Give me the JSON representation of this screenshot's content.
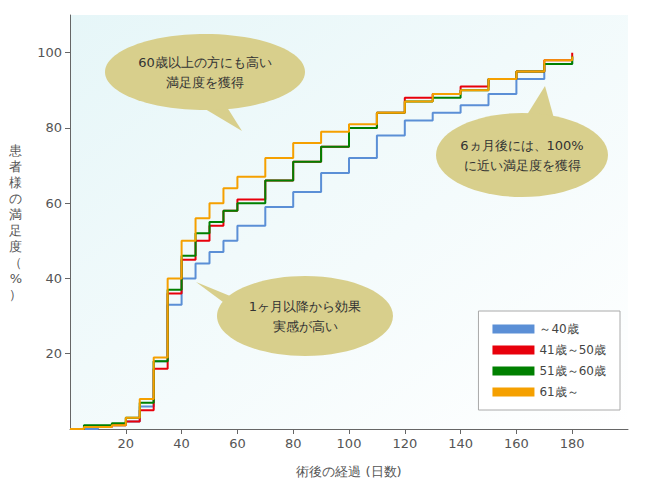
{
  "chart_data": {
    "type": "line",
    "x_label": "術後の経過 (日数)",
    "y_label": "患者様の満足度（%）",
    "x": [
      0,
      5,
      10,
      15,
      20,
      25,
      30,
      35,
      40,
      45,
      50,
      55,
      60,
      70,
      80,
      90,
      100,
      110,
      120,
      130,
      140,
      150,
      160,
      170,
      180
    ],
    "series": [
      {
        "name": "～40歳",
        "color": "#5b8fd6",
        "values": [
          0,
          0,
          0.5,
          1,
          2,
          6,
          18,
          33,
          40,
          44,
          47,
          50,
          54,
          59,
          63,
          68,
          72,
          78,
          82,
          84,
          86,
          89,
          93,
          97,
          99
        ]
      },
      {
        "name": "41歳～50歳",
        "color": "#e8000b",
        "values": [
          0,
          0.5,
          0.5,
          1,
          2,
          5,
          16,
          36,
          45,
          50,
          54,
          58,
          61,
          66,
          71,
          75,
          80,
          84,
          88,
          89,
          91,
          93,
          95,
          98,
          100
        ]
      },
      {
        "name": "51歳～60歳",
        "color": "#008000",
        "values": [
          0,
          1,
          1,
          1.5,
          3,
          7,
          18,
          37,
          46,
          52,
          55,
          58,
          60,
          66,
          71,
          75,
          80,
          84,
          87,
          88,
          90,
          93,
          95,
          97,
          99
        ]
      },
      {
        "name": "61歳～",
        "color": "#f5a000",
        "values": [
          0,
          0.5,
          0.5,
          1,
          3,
          8,
          19,
          40,
          50,
          56,
          60,
          64,
          67,
          72,
          76,
          79,
          81,
          84,
          87,
          89,
          90,
          93,
          95,
          98,
          99
        ]
      }
    ],
    "xlim": [
      0,
      200
    ],
    "xticks": [
      20,
      40,
      60,
      80,
      100,
      120,
      140,
      160,
      180
    ],
    "ylim": [
      0,
      110
    ],
    "yticks": [
      20,
      40,
      60,
      80,
      100
    ],
    "grid": false,
    "legend": "lower right",
    "line_style": "step",
    "marker": "none",
    "annotations": [
      "60歳以上の方にも高い\n満足度を獲得",
      "6ヵ月後には、100%\nに近い満足度を獲得",
      "1ヶ月以降から効果\n実感が高い"
    ]
  }
}
